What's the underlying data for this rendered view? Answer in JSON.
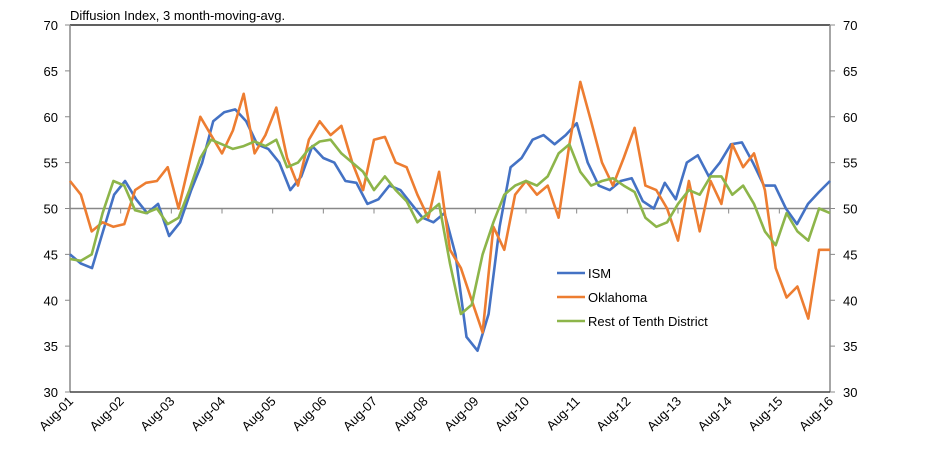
{
  "chart_data": {
    "type": "line",
    "title": "Diffusion Index, 3 month-moving-avg.",
    "xlabel": "",
    "ylabel": "",
    "ylim": [
      30,
      70
    ],
    "yticks": [
      30,
      35,
      40,
      45,
      50,
      55,
      60,
      65,
      70
    ],
    "yticks_right": [
      30,
      35,
      40,
      45,
      50,
      55,
      60,
      65,
      70
    ],
    "reference_line": 50,
    "grid": false,
    "legend_position": "center-right",
    "x_tick_labels": [
      "Aug-01",
      "Aug-02",
      "Aug-03",
      "Aug-04",
      "Aug-05",
      "Aug-06",
      "Aug-07",
      "Aug-08",
      "Aug-09",
      "Aug-10",
      "Aug-11",
      "Aug-12",
      "Aug-13",
      "Aug-14",
      "Aug-15",
      "Aug-16"
    ],
    "x_unit": "quarters since Aug-01",
    "series": [
      {
        "name": "ISM",
        "color": "#4472C4",
        "values": [
          45.0,
          44.0,
          43.5,
          47.5,
          51.5,
          53.0,
          51.0,
          49.5,
          50.5,
          47.0,
          48.5,
          52.0,
          55.0,
          59.5,
          60.5,
          60.8,
          59.5,
          57.0,
          56.5,
          55.0,
          52.0,
          53.5,
          56.8,
          55.5,
          55.0,
          53.0,
          52.8,
          50.5,
          51.0,
          52.5,
          52.0,
          50.5,
          49.0,
          48.5,
          49.5,
          45.0,
          36.0,
          34.5,
          38.5,
          48.0,
          54.5,
          55.5,
          57.5,
          58.0,
          57.0,
          58.0,
          59.3,
          55.0,
          52.5,
          52.0,
          53.0,
          53.3,
          50.8,
          50.0,
          52.8,
          51.0,
          55.0,
          55.8,
          53.5,
          55.0,
          57.0,
          57.2,
          55.0,
          52.5,
          52.5,
          50.0,
          48.3,
          50.5,
          51.8,
          53.0
        ]
      },
      {
        "name": "Oklahoma",
        "color": "#ED7D31",
        "values": [
          53.0,
          51.5,
          47.5,
          48.5,
          48.0,
          48.3,
          52.0,
          52.8,
          53.0,
          54.5,
          50.0,
          55.0,
          60.0,
          58.0,
          56.0,
          58.5,
          62.5,
          56.0,
          58.0,
          61.0,
          55.5,
          52.5,
          57.5,
          59.5,
          58.0,
          59.0,
          55.0,
          52.0,
          57.5,
          57.8,
          55.0,
          54.5,
          51.5,
          49.0,
          54.0,
          45.5,
          43.5,
          40.0,
          36.5,
          48.0,
          45.5,
          51.5,
          53.0,
          51.5,
          52.5,
          49.0,
          57.0,
          63.8,
          59.5,
          55.0,
          52.5,
          55.5,
          58.8,
          52.5,
          52.0,
          50.0,
          46.5,
          53.0,
          47.5,
          53.0,
          50.5,
          57.0,
          54.5,
          56.0,
          52.0,
          43.5,
          40.3,
          41.5,
          38.0,
          45.5,
          45.5
        ]
      },
      {
        "name": "Rest of Tenth District",
        "color": "#8DB54A",
        "values": [
          44.5,
          44.3,
          45.0,
          49.5,
          53.0,
          52.5,
          49.8,
          49.5,
          50.0,
          48.3,
          49.0,
          52.0,
          55.5,
          57.5,
          57.0,
          56.5,
          56.8,
          57.3,
          56.8,
          57.5,
          54.5,
          55.0,
          56.5,
          57.3,
          57.5,
          56.0,
          55.0,
          54.0,
          52.0,
          53.5,
          52.0,
          50.8,
          48.5,
          49.5,
          50.5,
          44.0,
          38.5,
          39.5,
          45.0,
          48.5,
          51.5,
          52.5,
          53.0,
          52.5,
          53.5,
          56.0,
          57.0,
          54.0,
          52.5,
          53.0,
          53.3,
          52.5,
          51.8,
          49.0,
          48.0,
          48.5,
          50.5,
          52.0,
          51.5,
          53.5,
          53.5,
          51.5,
          52.5,
          50.5,
          47.5,
          46.0,
          49.5,
          47.5,
          46.5,
          50.0,
          49.5
        ]
      }
    ]
  }
}
